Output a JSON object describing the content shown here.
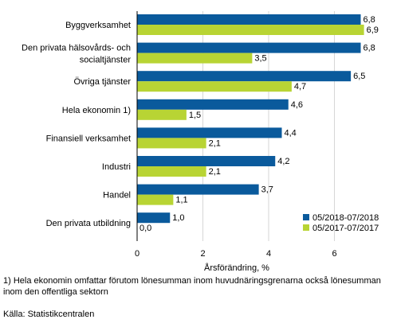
{
  "chart_data": {
    "type": "bar",
    "orientation": "horizontal",
    "categories": [
      "Byggverksamhet",
      [
        "Den privata hälsovårds- och",
        "socialtjänster"
      ],
      "Övriga tjänster",
      "Hela ekonomin 1)",
      "Finansiell verksamhet",
      "Industri",
      "Handel",
      "Den privata utbildning"
    ],
    "series": [
      {
        "name": "05/2018-07/2018",
        "color": "#0a5a9c",
        "values": [
          6.8,
          6.8,
          6.5,
          4.6,
          4.4,
          4.2,
          3.7,
          1.0
        ],
        "labels": [
          "6,8",
          "6,8",
          "6,5",
          "4,6",
          "4,4",
          "4,2",
          "3,7",
          "1,0"
        ]
      },
      {
        "name": "05/2017-07/2017",
        "color": "#b8d434",
        "values": [
          6.9,
          3.5,
          4.7,
          1.5,
          2.1,
          2.1,
          1.1,
          0.0
        ],
        "labels": [
          "6,9",
          "3,5",
          "4,7",
          "1,5",
          "2,1",
          "2,1",
          "1,1",
          "0,0"
        ]
      }
    ],
    "xlabel": "Årsförändring, %",
    "xlim": [
      0,
      8
    ],
    "xticks": [
      0,
      2,
      4,
      6
    ],
    "grid": true,
    "legend_position": "bottom-right"
  },
  "footnote": {
    "note": "1) Hela ekonomin omfattar förutom lönesumman inom huvudnäringsgrenarna också lönesumman inom den offentliga sektorn",
    "source": "Källa: Statistikcentralen"
  }
}
